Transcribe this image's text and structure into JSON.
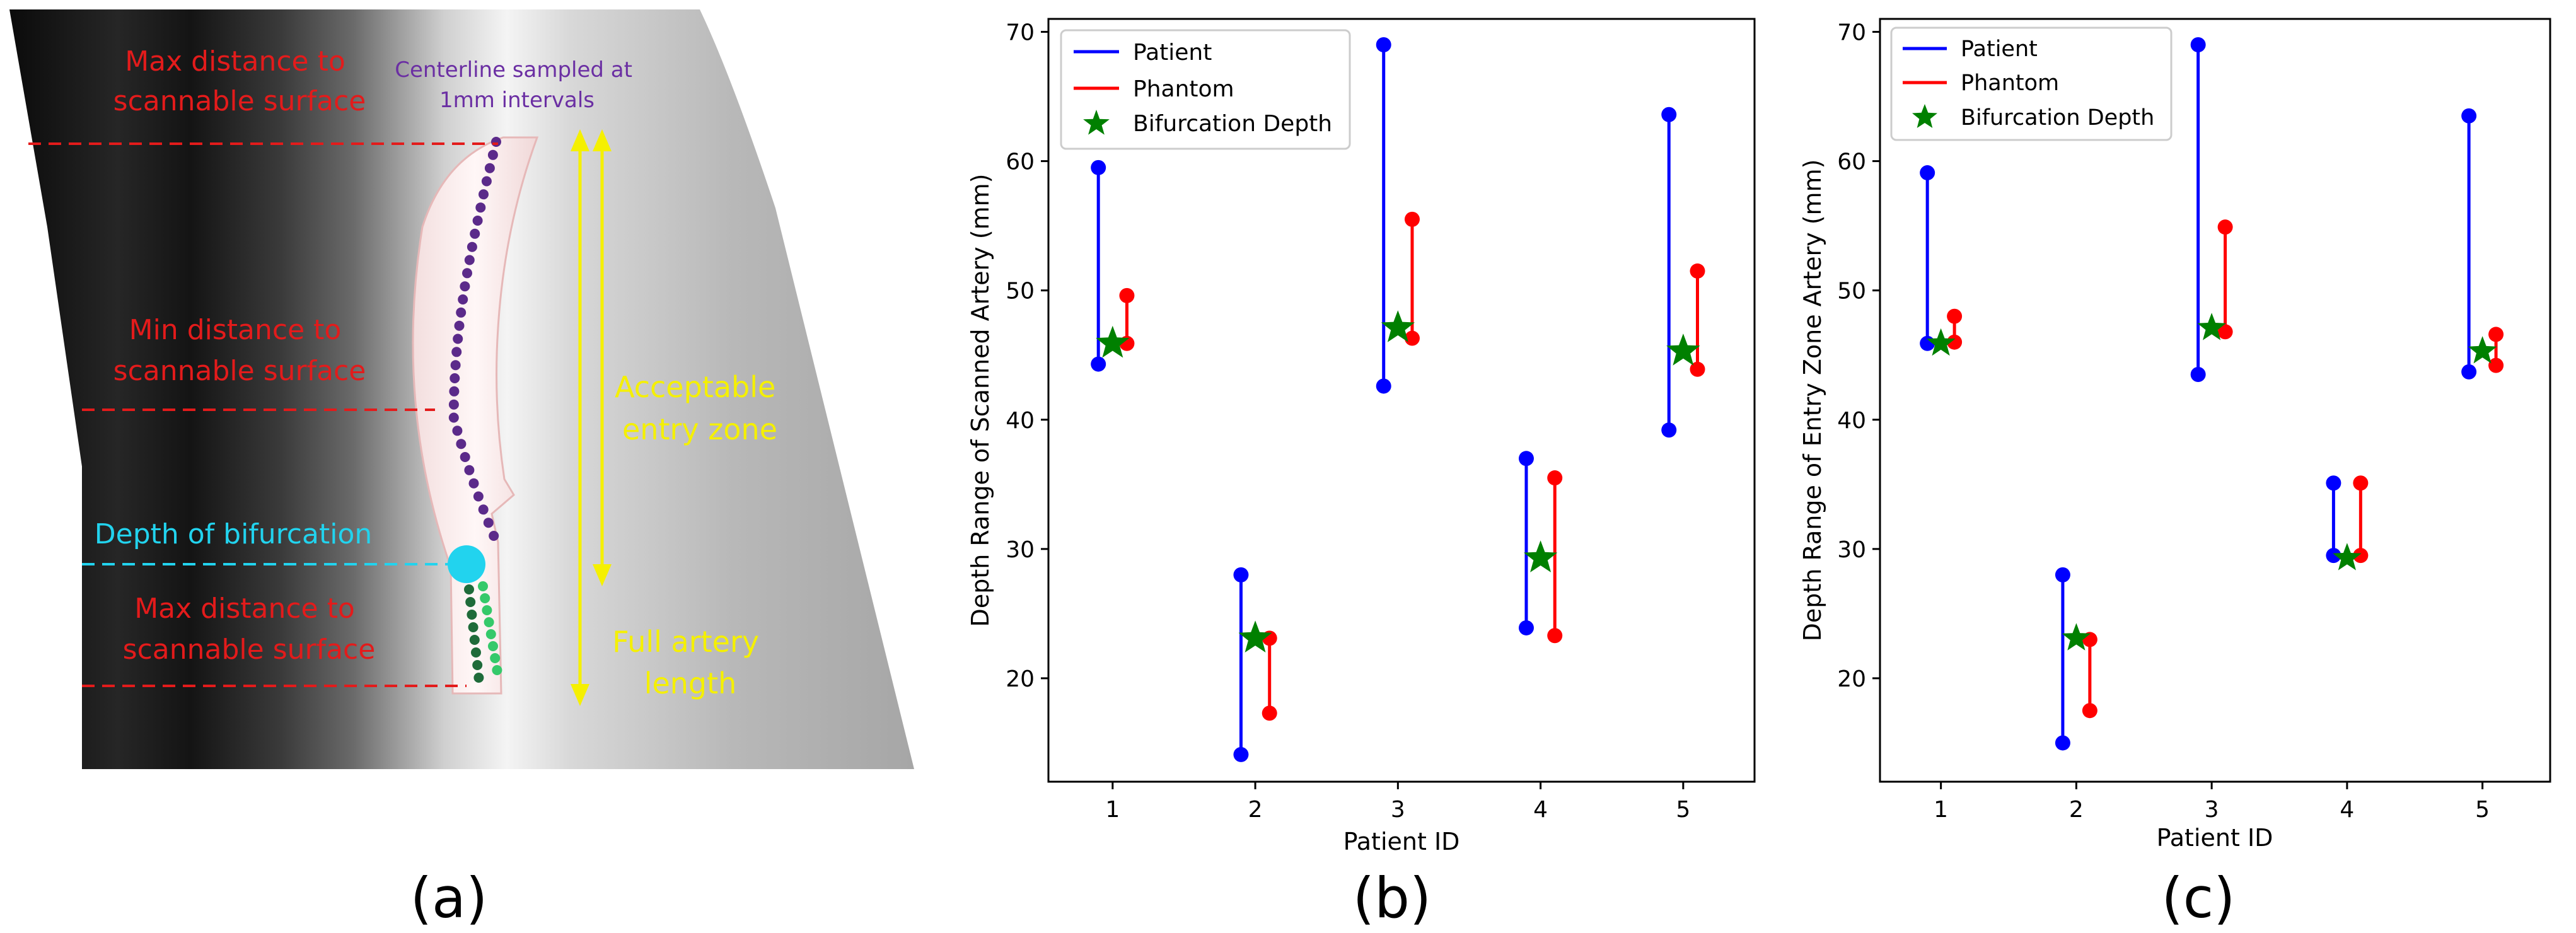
{
  "panel_a": {
    "labels": {
      "max_top": [
        "Max distance to",
        "scannable surface"
      ],
      "min": [
        "Min distance to",
        "scannable surface"
      ],
      "bifurcation": "Depth of bifurcation",
      "max_bottom": [
        "Max distance to",
        "scannable surface"
      ],
      "centerline": [
        "Centerline sampled at",
        "1mm intervals"
      ],
      "entry_zone": [
        "Acceptable",
        "entry zone"
      ],
      "full_length": [
        "Full artery",
        "length"
      ]
    },
    "colors": {
      "red_label": "#e31b1b",
      "purple_label": "#6b2fa3",
      "cyan": "#22d3ee",
      "yellow": "#f5f000",
      "dark_green": "#1f6b3a",
      "light_green": "#35c96a",
      "purple_dot": "#5b2a8a"
    },
    "caption": "(a)"
  },
  "chart_data": [
    {
      "type": "scatter",
      "panel": "b",
      "caption": "(b)",
      "xlabel": "Patient ID",
      "ylabel": "Depth Range of Scanned Artery (mm)",
      "xlim": [
        0.55,
        5.5
      ],
      "ylim": [
        12,
        71
      ],
      "xticks": [
        1,
        2,
        3,
        4,
        5
      ],
      "yticks": [
        20,
        30,
        40,
        50,
        60,
        70
      ],
      "legend": {
        "position": "top-left",
        "entries": [
          {
            "label": "Patient",
            "kind": "line",
            "color": "#0000ff"
          },
          {
            "label": "Phantom",
            "kind": "line",
            "color": "#ff0000"
          },
          {
            "label": "Bifurcation Depth",
            "kind": "star",
            "color": "#008000"
          }
        ]
      },
      "series": [
        {
          "name": "Patient",
          "color": "#0000ff",
          "offset": -0.1,
          "ranges": [
            [
              44.3,
              59.5
            ],
            [
              14.1,
              28.0
            ],
            [
              42.6,
              69.0
            ],
            [
              23.9,
              37.0
            ],
            [
              39.2,
              63.6
            ]
          ]
        },
        {
          "name": "Phantom",
          "color": "#ff0000",
          "offset": 0.1,
          "ranges": [
            [
              45.9,
              49.6
            ],
            [
              17.3,
              23.1
            ],
            [
              46.3,
              55.5
            ],
            [
              23.3,
              35.5
            ],
            [
              43.9,
              51.5
            ]
          ]
        },
        {
          "name": "Bifurcation Depth",
          "color": "#008000",
          "values": [
            45.9,
            23.1,
            47.1,
            29.3,
            45.3
          ]
        }
      ]
    },
    {
      "type": "scatter",
      "panel": "c",
      "caption": "(c)",
      "xlabel": "Patient ID",
      "ylabel": "Depth Range of Entry Zone Artery (mm)",
      "xlim": [
        0.55,
        5.5
      ],
      "ylim": [
        12,
        71
      ],
      "xticks": [
        1,
        2,
        3,
        4,
        5
      ],
      "yticks": [
        20,
        30,
        40,
        50,
        60,
        70
      ],
      "legend": {
        "position": "top-left",
        "entries": [
          {
            "label": "Patient",
            "kind": "line",
            "color": "#0000ff"
          },
          {
            "label": "Phantom",
            "kind": "line",
            "color": "#ff0000"
          },
          {
            "label": "Bifurcation Depth",
            "kind": "star",
            "color": "#008000"
          }
        ]
      },
      "series": [
        {
          "name": "Patient",
          "color": "#0000ff",
          "offset": -0.1,
          "ranges": [
            [
              45.9,
              59.1
            ],
            [
              15.0,
              28.0
            ],
            [
              43.5,
              69.0
            ],
            [
              29.5,
              35.1
            ],
            [
              43.7,
              63.5
            ]
          ]
        },
        {
          "name": "Phantom",
          "color": "#ff0000",
          "offset": 0.1,
          "ranges": [
            [
              46.0,
              48.0
            ],
            [
              17.5,
              23.0
            ],
            [
              46.8,
              54.9
            ],
            [
              29.5,
              35.1
            ],
            [
              44.2,
              46.6
            ]
          ]
        },
        {
          "name": "Bifurcation Depth",
          "color": "#008000",
          "values": [
            45.9,
            23.1,
            47.1,
            29.3,
            45.3
          ]
        }
      ]
    }
  ]
}
